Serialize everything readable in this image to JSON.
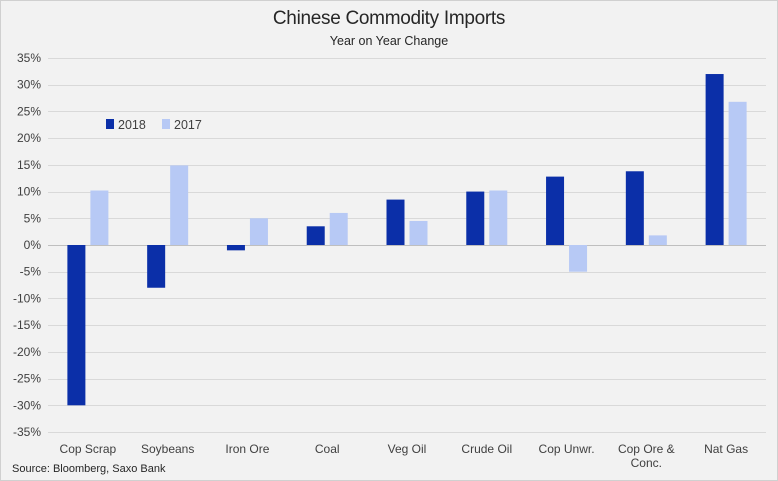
{
  "chart_data": {
    "type": "bar",
    "title": "Chinese Commodity Imports",
    "subtitle": "Year on Year Change",
    "source": "Source: Bloomberg, Saxo Bank",
    "xlabel": "",
    "ylabel": "",
    "ylim": [
      -35,
      35
    ],
    "ytick_step": 5,
    "ytick_suffix": "%",
    "grid": true,
    "legend_position": "top-left",
    "categories": [
      [
        "Cop Scrap"
      ],
      [
        "Soybeans"
      ],
      [
        "Iron Ore"
      ],
      [
        "Coal"
      ],
      [
        "Veg Oil"
      ],
      [
        "Crude Oil"
      ],
      [
        "Cop Unwr."
      ],
      [
        "Cop Ore &",
        "Conc."
      ],
      [
        "Nat Gas"
      ]
    ],
    "series": [
      {
        "name": "2018",
        "color": "#0b2fa8",
        "values": [
          -30,
          -8,
          -1,
          3.5,
          8.5,
          10,
          12.8,
          13.8,
          32
        ]
      },
      {
        "name": "2017",
        "color": "#b7c9f5",
        "values": [
          10.2,
          14.9,
          5,
          6,
          4.5,
          10.2,
          -5,
          1.8,
          26.8
        ]
      }
    ]
  }
}
